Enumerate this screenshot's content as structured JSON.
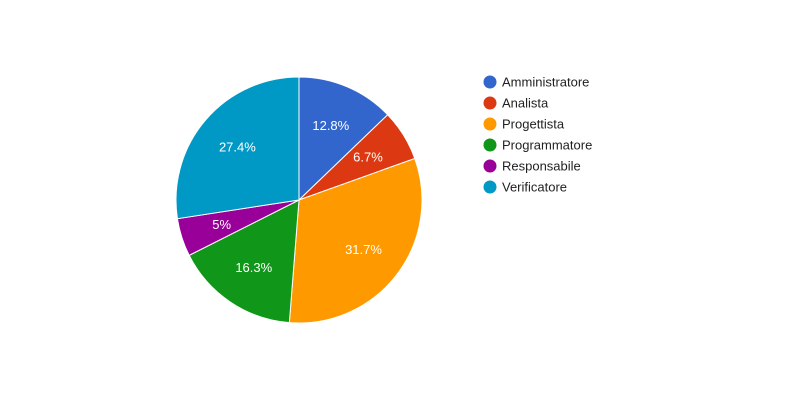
{
  "chart_data": {
    "type": "pie",
    "title": "",
    "legend_position": "right",
    "categories": [
      "Amministratore",
      "Analista",
      "Progettista",
      "Programmatore",
      "Responsabile",
      "Verificatore"
    ],
    "values": [
      12.8,
      6.7,
      31.7,
      16.3,
      5,
      27.4
    ],
    "labels": [
      "12.8%",
      "6.7%",
      "31.7%",
      "16.3%",
      "5%",
      "27.4%"
    ],
    "colors": [
      "#3366cc",
      "#dc3912",
      "#ff9900",
      "#109618",
      "#990099",
      "#0099c6"
    ]
  }
}
